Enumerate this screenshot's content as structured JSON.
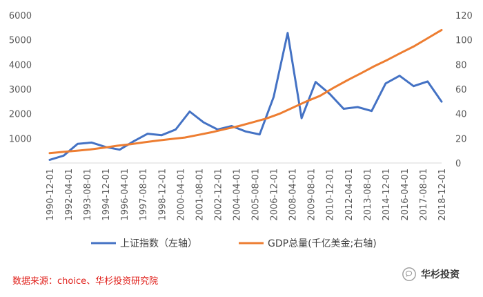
{
  "chart_data": {
    "type": "line",
    "title": "",
    "xlabel": "",
    "ylabel": "",
    "y_left_lim": [
      0,
      6000
    ],
    "y_left_ticks": [
      "1000",
      "2000",
      "3000",
      "4000",
      "5000",
      "6000"
    ],
    "y_right_lim": [
      0,
      120
    ],
    "y_right_ticks": [
      "0",
      "20",
      "40",
      "60",
      "80",
      "100",
      "120"
    ],
    "x_labels": [
      "1990-12-01",
      "1992-04-01",
      "1993-08-01",
      "1994-12-01",
      "1996-04-01",
      "1997-08-01",
      "1998-12-01",
      "2000-04-01",
      "2001-08-01",
      "2002-12-01",
      "2004-04-01",
      "2005-08-01",
      "2006-12-01",
      "2008-04-01",
      "2009-08-01",
      "2010-12-01",
      "2012-04-01",
      "2013-08-01",
      "2014-12-01",
      "2016-04-01",
      "2017-08-01",
      "2018-12-01"
    ],
    "grid": false,
    "legend": "bottom",
    "series": [
      {
        "name": "上证指数（左轴）",
        "axis": "left",
        "color": "#4472c4",
        "values": [
          128,
          300,
          780,
          830,
          650,
          540,
          880,
          1190,
          1130,
          1360,
          2090,
          1650,
          1360,
          1500,
          1280,
          1160,
          2680,
          5280,
          1820,
          3290,
          2810,
          2200,
          2270,
          2110,
          3230,
          3540,
          3120,
          3310,
          2490
        ]
      },
      {
        "name": "GDP总量(千亿美金;右轴)",
        "axis": "right",
        "color": "#ed7d31",
        "values": [
          8,
          9,
          10,
          11,
          12.4,
          14,
          15.3,
          16.8,
          18.2,
          19.5,
          20.7,
          22.8,
          25,
          27.6,
          30,
          33,
          36,
          40,
          45,
          50,
          54.5,
          61,
          67,
          72.7,
          78.5,
          83.8,
          89.5,
          95,
          101.5,
          108
        ]
      }
    ]
  },
  "source": "数据来源：choice、华杉投资研究院",
  "watermark": {
    "text": "华杉投资",
    "icon": "wechat-brand-icon"
  }
}
